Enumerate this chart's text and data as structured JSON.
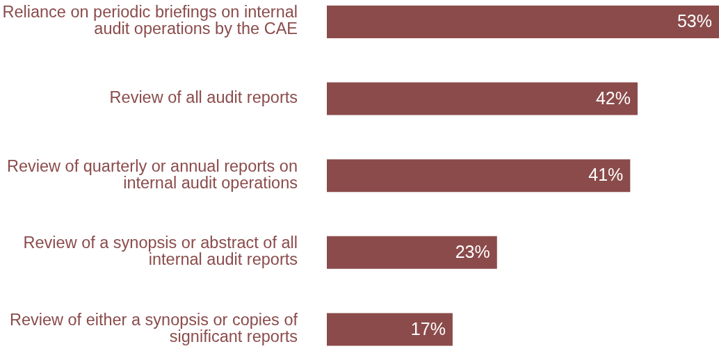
{
  "chart_data": {
    "type": "bar",
    "orientation": "horizontal",
    "categories": [
      "Reliance on periodic briefings on internal audit operations by the CAE",
      "Review of all audit reports",
      "Review of quarterly or annual reports on internal audit operations",
      "Review of a synopsis or abstract of all internal audit reports",
      "Review of either a synopsis or copies of significant reports"
    ],
    "values": [
      53,
      42,
      41,
      23,
      17
    ],
    "value_labels": [
      "53%",
      "42%",
      "41%",
      "23%",
      "17%"
    ],
    "color": "#8b4b4b"
  }
}
